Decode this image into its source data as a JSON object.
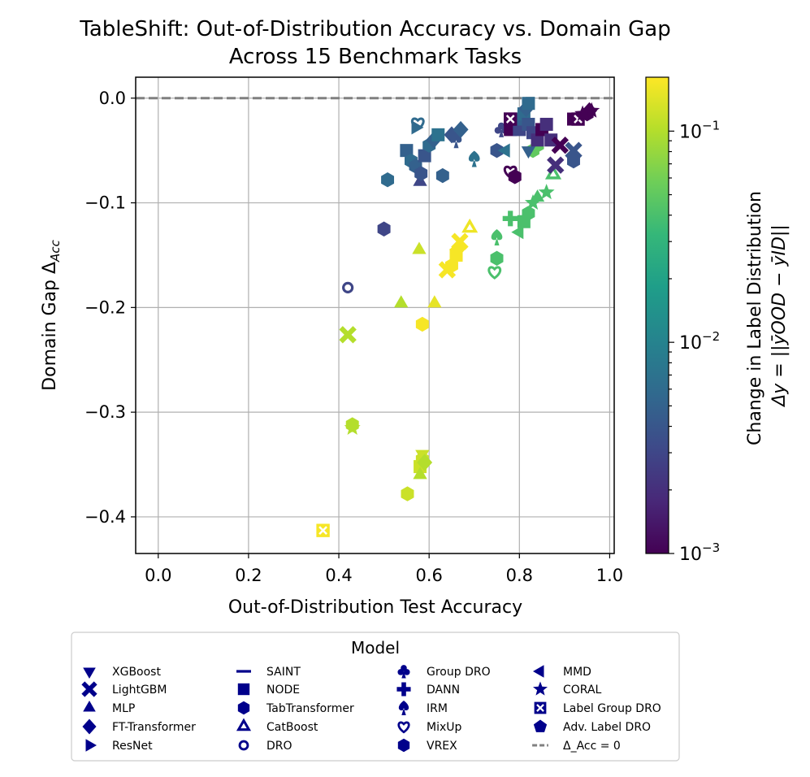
{
  "chart_data": {
    "type": "scatter",
    "title_line1": "TableShift: Out-of-Distribution Accuracy vs. Domain Gap",
    "title_line2": "Across 15 Benchmark Tasks",
    "xlabel": "Out-of-Distribution Test Accuracy",
    "ylabel_main": "Domain Gap Δ",
    "ylabel_sub": "Acc",
    "xlim": [
      -0.05,
      1.01
    ],
    "ylim": [
      -0.435,
      0.02
    ],
    "xticks": [
      0.0,
      0.2,
      0.4,
      0.6,
      0.8,
      1.0
    ],
    "xtick_labels": [
      "0.0",
      "0.2",
      "0.4",
      "0.6",
      "0.8",
      "1.0"
    ],
    "yticks": [
      0.0,
      -0.1,
      -0.2,
      -0.3,
      -0.4
    ],
    "ytick_labels": [
      "0.0",
      "−0.1",
      "−0.2",
      "−0.3",
      "−0.4"
    ],
    "grid": true,
    "reference_line": {
      "y": 0.0,
      "label": "Δ_Acc = 0",
      "color": "#808080",
      "style": "dashed"
    },
    "colorbar": {
      "scale": "log",
      "range": [
        0.001,
        0.18
      ],
      "colormap": "viridis",
      "ticks": [
        0.001,
        0.01,
        0.1
      ],
      "tick_bases": [
        "10",
        "10",
        "10"
      ],
      "tick_exps": [
        "−3",
        "−2",
        "−1"
      ],
      "label_line1": "Change in Label Distribution",
      "label_line2": "Δy = ||ȳOOD − ȳID||"
    },
    "legend": {
      "title": "Model",
      "placement": "below",
      "entries": [
        {
          "label": "XGBoost",
          "marker": "tri-down"
        },
        {
          "label": "LightGBM",
          "marker": "x"
        },
        {
          "label": "MLP",
          "marker": "tri-up"
        },
        {
          "label": "FT-Transformer",
          "marker": "diamond"
        },
        {
          "label": "ResNet",
          "marker": "tri-right"
        },
        {
          "label": "SAINT",
          "marker": "hline"
        },
        {
          "label": "NODE",
          "marker": "square"
        },
        {
          "label": "TabTransformer",
          "marker": "hexagon"
        },
        {
          "label": "CatBoost",
          "marker": "tri-up-open"
        },
        {
          "label": "DRO",
          "marker": "circle-open"
        },
        {
          "label": "Group DRO",
          "marker": "club"
        },
        {
          "label": "DANN",
          "marker": "plus"
        },
        {
          "label": "IRM",
          "marker": "spade"
        },
        {
          "label": "MixUp",
          "marker": "heart-open"
        },
        {
          "label": "VREX",
          "marker": "hexagon"
        },
        {
          "label": "MMD",
          "marker": "tri-left"
        },
        {
          "label": "CORAL",
          "marker": "star"
        },
        {
          "label": "Label Group DRO",
          "marker": "square-x"
        },
        {
          "label": "Adv. Label DRO",
          "marker": "pentagon"
        },
        {
          "label": "Δ_Acc = 0",
          "marker": "dashline"
        }
      ]
    },
    "points": [
      {
        "x": 0.365,
        "y": -0.413,
        "dy": 0.17,
        "m": "square-x"
      },
      {
        "x": 0.42,
        "y": -0.226,
        "dy": 0.1,
        "m": "x"
      },
      {
        "x": 0.43,
        "y": -0.315,
        "dy": 0.1,
        "m": "star"
      },
      {
        "x": 0.43,
        "y": -0.312,
        "dy": 0.1,
        "m": "hexagon"
      },
      {
        "x": 0.42,
        "y": -0.181,
        "dy": 0.003,
        "m": "circle-open"
      },
      {
        "x": 0.5,
        "y": -0.125,
        "dy": 0.003,
        "m": "hexagon"
      },
      {
        "x": 0.508,
        "y": -0.078,
        "dy": 0.006,
        "m": "hexagon"
      },
      {
        "x": 0.538,
        "y": -0.196,
        "dy": 0.1,
        "m": "tri-up"
      },
      {
        "x": 0.552,
        "y": -0.378,
        "dy": 0.12,
        "m": "hexagon"
      },
      {
        "x": 0.58,
        "y": -0.352,
        "dy": 0.12,
        "m": "square"
      },
      {
        "x": 0.585,
        "y": -0.345,
        "dy": 0.12,
        "m": "hexagon"
      },
      {
        "x": 0.585,
        "y": -0.34,
        "dy": 0.12,
        "m": "tri-down"
      },
      {
        "x": 0.58,
        "y": -0.36,
        "dy": 0.1,
        "m": "tri-up"
      },
      {
        "x": 0.59,
        "y": -0.348,
        "dy": 0.1,
        "m": "diamond"
      },
      {
        "x": 0.578,
        "y": -0.145,
        "dy": 0.12,
        "m": "tri-up"
      },
      {
        "x": 0.585,
        "y": -0.216,
        "dy": 0.17,
        "m": "hexagon"
      },
      {
        "x": 0.612,
        "y": -0.196,
        "dy": 0.15,
        "m": "tri-up"
      },
      {
        "x": 0.64,
        "y": -0.164,
        "dy": 0.17,
        "m": "x"
      },
      {
        "x": 0.65,
        "y": -0.16,
        "dy": 0.17,
        "m": "hexagon"
      },
      {
        "x": 0.66,
        "y": -0.15,
        "dy": 0.17,
        "m": "square"
      },
      {
        "x": 0.662,
        "y": -0.145,
        "dy": 0.17,
        "m": "diamond"
      },
      {
        "x": 0.668,
        "y": -0.137,
        "dy": 0.17,
        "m": "x"
      },
      {
        "x": 0.69,
        "y": -0.124,
        "dy": 0.16,
        "m": "tri-up-open"
      },
      {
        "x": 0.55,
        "y": -0.05,
        "dy": 0.005,
        "m": "square"
      },
      {
        "x": 0.56,
        "y": -0.06,
        "dy": 0.006,
        "m": "hexagon"
      },
      {
        "x": 0.57,
        "y": -0.065,
        "dy": 0.005,
        "m": "hexagon"
      },
      {
        "x": 0.57,
        "y": -0.028,
        "dy": 0.006,
        "m": "tri-right"
      },
      {
        "x": 0.575,
        "y": -0.024,
        "dy": 0.006,
        "m": "heart-open"
      },
      {
        "x": 0.58,
        "y": -0.08,
        "dy": 0.003,
        "m": "tri-up"
      },
      {
        "x": 0.582,
        "y": -0.072,
        "dy": 0.004,
        "m": "hexagon"
      },
      {
        "x": 0.59,
        "y": -0.055,
        "dy": 0.004,
        "m": "square"
      },
      {
        "x": 0.6,
        "y": -0.045,
        "dy": 0.006,
        "m": "hexagon"
      },
      {
        "x": 0.61,
        "y": -0.04,
        "dy": 0.005,
        "m": "diamond"
      },
      {
        "x": 0.62,
        "y": -0.035,
        "dy": 0.007,
        "m": "square"
      },
      {
        "x": 0.63,
        "y": -0.074,
        "dy": 0.005,
        "m": "hexagon"
      },
      {
        "x": 0.65,
        "y": -0.035,
        "dy": 0.004,
        "m": "diamond"
      },
      {
        "x": 0.66,
        "y": -0.04,
        "dy": 0.004,
        "m": "spade"
      },
      {
        "x": 0.67,
        "y": -0.03,
        "dy": 0.005,
        "m": "diamond"
      },
      {
        "x": 0.7,
        "y": -0.058,
        "dy": 0.007,
        "m": "spade"
      },
      {
        "x": 0.745,
        "y": -0.166,
        "dy": 0.04,
        "m": "heart-open"
      },
      {
        "x": 0.75,
        "y": -0.133,
        "dy": 0.04,
        "m": "spade"
      },
      {
        "x": 0.75,
        "y": -0.153,
        "dy": 0.04,
        "m": "hexagon"
      },
      {
        "x": 0.75,
        "y": -0.05,
        "dy": 0.004,
        "m": "hexagon"
      },
      {
        "x": 0.76,
        "y": -0.03,
        "dy": 0.003,
        "m": "club"
      },
      {
        "x": 0.78,
        "y": -0.115,
        "dy": 0.04,
        "m": "plus"
      },
      {
        "x": 0.77,
        "y": -0.05,
        "dy": 0.007,
        "m": "tri-left"
      },
      {
        "x": 0.78,
        "y": -0.07,
        "dy": 0.001,
        "m": "heart-open"
      },
      {
        "x": 0.79,
        "y": -0.075,
        "dy": 0.001,
        "m": "hexagon"
      },
      {
        "x": 0.78,
        "y": -0.03,
        "dy": 0.001,
        "m": "square"
      },
      {
        "x": 0.8,
        "y": -0.128,
        "dy": 0.04,
        "m": "tri-left"
      },
      {
        "x": 0.81,
        "y": -0.118,
        "dy": 0.04,
        "m": "square"
      },
      {
        "x": 0.82,
        "y": -0.11,
        "dy": 0.04,
        "m": "hexagon"
      },
      {
        "x": 0.83,
        "y": -0.05,
        "dy": 0.05,
        "m": "hexagon"
      },
      {
        "x": 0.84,
        "y": -0.045,
        "dy": 0.05,
        "m": "hexagon"
      },
      {
        "x": 0.83,
        "y": -0.1,
        "dy": 0.04,
        "m": "star"
      },
      {
        "x": 0.84,
        "y": -0.095,
        "dy": 0.04,
        "m": "tri-up"
      },
      {
        "x": 0.86,
        "y": -0.09,
        "dy": 0.04,
        "m": "star"
      },
      {
        "x": 0.875,
        "y": -0.073,
        "dy": 0.04,
        "m": "tri-up-open"
      },
      {
        "x": 0.8,
        "y": -0.03,
        "dy": 0.003,
        "m": "square"
      },
      {
        "x": 0.805,
        "y": -0.02,
        "dy": 0.005,
        "m": "square"
      },
      {
        "x": 0.81,
        "y": -0.015,
        "dy": 0.006,
        "m": "square"
      },
      {
        "x": 0.815,
        "y": -0.01,
        "dy": 0.005,
        "m": "diamond"
      },
      {
        "x": 0.82,
        "y": -0.005,
        "dy": 0.006,
        "m": "square"
      },
      {
        "x": 0.82,
        "y": -0.025,
        "dy": 0.004,
        "m": "square"
      },
      {
        "x": 0.82,
        "y": -0.05,
        "dy": 0.005,
        "m": "tri-down"
      },
      {
        "x": 0.83,
        "y": -0.033,
        "dy": 0.003,
        "m": "square"
      },
      {
        "x": 0.84,
        "y": -0.04,
        "dy": 0.002,
        "m": "square"
      },
      {
        "x": 0.85,
        "y": -0.03,
        "dy": 0.001,
        "m": "square"
      },
      {
        "x": 0.86,
        "y": -0.025,
        "dy": 0.002,
        "m": "square"
      },
      {
        "x": 0.87,
        "y": -0.04,
        "dy": 0.002,
        "m": "square"
      },
      {
        "x": 0.88,
        "y": -0.064,
        "dy": 0.002,
        "m": "x"
      },
      {
        "x": 0.89,
        "y": -0.045,
        "dy": 0.001,
        "m": "x"
      },
      {
        "x": 0.78,
        "y": -0.02,
        "dy": 0.001,
        "m": "square-x"
      },
      {
        "x": 0.92,
        "y": -0.05,
        "dy": 0.004,
        "m": "x"
      },
      {
        "x": 0.92,
        "y": -0.06,
        "dy": 0.004,
        "m": "hexagon"
      },
      {
        "x": 0.92,
        "y": -0.02,
        "dy": 0.001,
        "m": "square"
      },
      {
        "x": 0.93,
        "y": -0.02,
        "dy": 0.001,
        "m": "square-x"
      },
      {
        "x": 0.94,
        "y": -0.015,
        "dy": 0.001,
        "m": "star"
      },
      {
        "x": 0.95,
        "y": -0.015,
        "dy": 0.001,
        "m": "hexagon"
      },
      {
        "x": 0.955,
        "y": -0.012,
        "dy": 0.001,
        "m": "diamond"
      },
      {
        "x": 0.96,
        "y": -0.012,
        "dy": 0.001,
        "m": "star"
      }
    ]
  }
}
